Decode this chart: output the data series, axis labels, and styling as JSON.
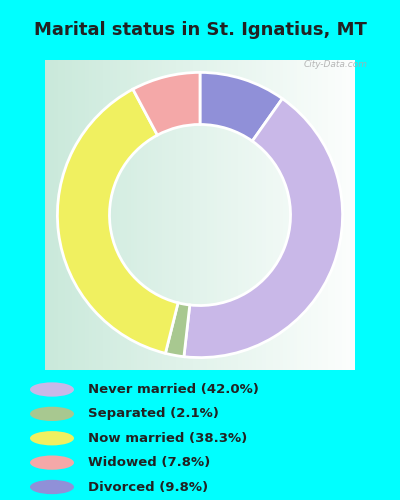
{
  "title": "Marital status in St. Ignatius, MT",
  "title_fontsize": 13,
  "title_color": "#222222",
  "cyan_bg": "#00FFFF",
  "chart_bg_left": "#c8e8d8",
  "chart_bg_right": "#f0f8f0",
  "categories": [
    "Never married",
    "Separated",
    "Now married",
    "Widowed",
    "Divorced"
  ],
  "values": [
    42.0,
    2.1,
    38.3,
    7.8,
    9.8
  ],
  "colors": [
    "#c9b8e8",
    "#a8c890",
    "#f0f060",
    "#f4a8a8",
    "#9090d8"
  ],
  "legend_colors": [
    "#c9b8e8",
    "#a8c890",
    "#f0f060",
    "#f4a8a8",
    "#9090d8"
  ],
  "legend_labels": [
    "Never married (42.0%)",
    "Separated (2.1%)",
    "Now married (38.3%)",
    "Widowed (7.8%)",
    "Divorced (9.8%)"
  ],
  "donut_width": 0.42,
  "watermark": "City-Data.com"
}
